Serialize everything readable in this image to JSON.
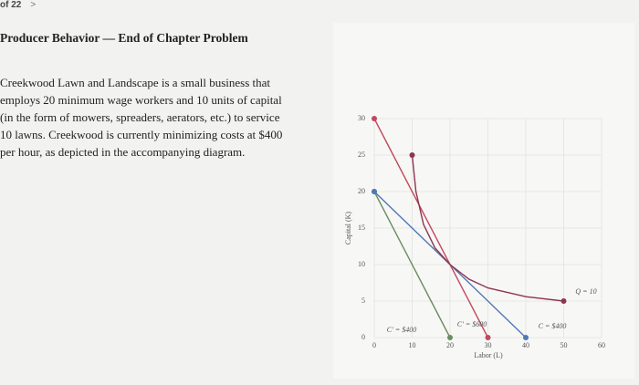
{
  "header": {
    "page_indicator": "of 22",
    "next": ">"
  },
  "document": {
    "title": "Producer Behavior — End of Chapter Problem",
    "paragraph": "Creekwood Lawn and Landscape is a small business that employs 20 minimum wage workers and 10 units of capital (in the form of mowers, spreaders, aerators, etc.) to service 10 lawns. Creekwood is currently minimizing costs at $400 per hour, as depicted in the accompanying diagram."
  },
  "chart_data": {
    "type": "line",
    "x_label": "Labor (L)",
    "y_label": "Capital (K)",
    "xlim": [
      0,
      60
    ],
    "ylim": [
      0,
      30
    ],
    "xticks": [
      0,
      10,
      20,
      30,
      40,
      50,
      60
    ],
    "yticks": [
      0,
      5,
      10,
      15,
      20,
      25,
      30
    ],
    "grid": true,
    "series": [
      {
        "name": "C′ = $400",
        "color": "#6b8e5e",
        "x": [
          0,
          20
        ],
        "values": [
          20,
          0
        ]
      },
      {
        "name": "C′ = $600",
        "color": "#c2495a",
        "x": [
          0,
          30
        ],
        "values": [
          30,
          0
        ]
      },
      {
        "name": "C = $400",
        "color": "#4f78b5",
        "x": [
          0,
          40
        ],
        "values": [
          20,
          0
        ]
      },
      {
        "name": "Q = 10",
        "color": "#8e3550",
        "x": [
          10,
          11,
          13,
          16,
          20,
          25,
          30,
          40,
          50
        ],
        "values": [
          25,
          20,
          15.5,
          12.3,
          10,
          8,
          6.8,
          5.6,
          5
        ]
      }
    ]
  }
}
